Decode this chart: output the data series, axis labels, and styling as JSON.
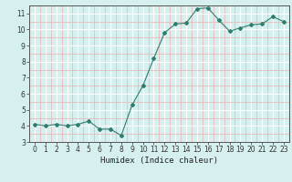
{
  "x": [
    0,
    1,
    2,
    3,
    4,
    5,
    6,
    7,
    8,
    9,
    10,
    11,
    12,
    13,
    14,
    15,
    16,
    17,
    18,
    19,
    20,
    21,
    22,
    23
  ],
  "y": [
    4.1,
    4.0,
    4.1,
    4.0,
    4.1,
    4.3,
    3.8,
    3.8,
    3.4,
    5.3,
    6.5,
    8.2,
    9.8,
    10.35,
    10.4,
    11.3,
    11.35,
    10.6,
    9.9,
    10.1,
    10.3,
    10.35,
    10.8,
    10.5
  ],
  "xlabel": "Humidex (Indice chaleur)",
  "ylim": [
    3.0,
    11.5
  ],
  "xlim": [
    -0.5,
    23.5
  ],
  "yticks": [
    3,
    4,
    5,
    6,
    7,
    8,
    9,
    10,
    11
  ],
  "xticks": [
    0,
    1,
    2,
    3,
    4,
    5,
    6,
    7,
    8,
    9,
    10,
    11,
    12,
    13,
    14,
    15,
    16,
    17,
    18,
    19,
    20,
    21,
    22,
    23
  ],
  "line_color": "#2e7d6e",
  "marker": "D",
  "marker_size": 2.0,
  "bg_color": "#d6f0f0",
  "grid_major_color": "#ffffff",
  "grid_minor_color": "#e8bbbb",
  "xlabel_fontsize": 6.5,
  "tick_fontsize": 5.5,
  "linewidth": 0.8
}
